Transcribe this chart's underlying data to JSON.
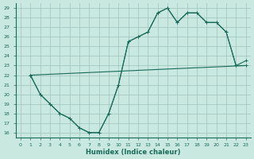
{
  "xlabel": "Humidex (Indice chaleur)",
  "background_color": "#c8e8e0",
  "grid_color": "#9dc4bc",
  "line_color": "#1a6b5a",
  "xlim": [
    -0.5,
    23.5
  ],
  "ylim": [
    15.5,
    29.5
  ],
  "xticks": [
    0,
    1,
    2,
    3,
    4,
    5,
    6,
    7,
    8,
    9,
    10,
    11,
    12,
    13,
    14,
    15,
    16,
    17,
    18,
    19,
    20,
    21,
    22,
    23
  ],
  "yticks": [
    16,
    17,
    18,
    19,
    20,
    21,
    22,
    23,
    24,
    25,
    26,
    27,
    28,
    29
  ],
  "line1_x": [
    1,
    2,
    3,
    4,
    5,
    6,
    7,
    8,
    9,
    10,
    11,
    12,
    13,
    14,
    15,
    16,
    17,
    18,
    19,
    20,
    21,
    22,
    23
  ],
  "line1_y": [
    22,
    20,
    19,
    18,
    17.5,
    16.5,
    16,
    16,
    18,
    21,
    25.5,
    26,
    26.5,
    28.5,
    29,
    27.5,
    28.5,
    28.5,
    27.5,
    27.5,
    26.5,
    23,
    23
  ],
  "line2_x": [
    1,
    2,
    3,
    4,
    5,
    6,
    7,
    8,
    9,
    10,
    11,
    12,
    13,
    14,
    15,
    16,
    17,
    18,
    19,
    20,
    21,
    22,
    23
  ],
  "line2_y": [
    22,
    20,
    19,
    18,
    17.5,
    16.5,
    16,
    16,
    18,
    21,
    25.5,
    26,
    26.5,
    28.5,
    29,
    27.5,
    28.5,
    28.5,
    27.5,
    27.5,
    26.5,
    23,
    23.5
  ],
  "line3_x": [
    1,
    23
  ],
  "line3_y": [
    22,
    23
  ],
  "xlabel_fontsize": 6,
  "tick_fontsize": 4.5
}
